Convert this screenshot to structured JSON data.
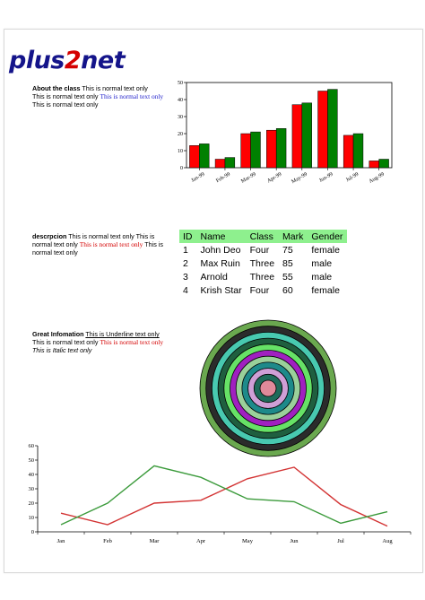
{
  "logo": {
    "part1": "plus",
    "part2": "2",
    "part3": "net"
  },
  "about": {
    "heading": "About the class",
    "t1": "This is normal text only",
    "t2": "This is normal text only",
    "t3": "This is normal text only",
    "t4": "This is normal text only"
  },
  "descr": {
    "heading": "descrpcion",
    "t1": "This is normal text only This is normal text only",
    "t2": "This is normal text only",
    "t3": "This is normal text only"
  },
  "info": {
    "heading": "Great Infomation",
    "underline": "This is Underline text only",
    "t1": "This is normal text only",
    "t2": "This is normal text only",
    "italic": "This is Italic text only"
  },
  "table": {
    "headers": [
      "ID",
      "Name",
      "Class",
      "Mark",
      "Gender"
    ],
    "rows": [
      [
        "1",
        "John Deo",
        "Four",
        "75",
        "female"
      ],
      [
        "2",
        "Max Ruin",
        "Three",
        "85",
        "male"
      ],
      [
        "3",
        "Arnold",
        "Three",
        "55",
        "male"
      ],
      [
        "4",
        "Krish Star",
        "Four",
        "60",
        "female"
      ]
    ]
  },
  "colors": {
    "red": "#ff0000",
    "green": "#008000",
    "line_red": "#d33434",
    "line_green": "#3c9b3c",
    "header_bg": "#8ef08e",
    "rings": [
      "#6aa84f",
      "#2b2b2b",
      "#48c9b0",
      "#1f5f3f",
      "#66e266",
      "#a020c0",
      "#9ad09a",
      "#1e8a8a",
      "#cf9fd6",
      "#1f6b5a",
      "#e08a9a"
    ]
  },
  "chart_data": [
    {
      "type": "bar",
      "categories": [
        "Jan-99",
        "Feb-99",
        "Mar-99",
        "Apr-99",
        "May-99",
        "Jun-99",
        "Jul-99",
        "Aug-99"
      ],
      "series": [
        {
          "values": [
            13,
            5,
            20,
            22,
            37,
            45,
            19,
            4
          ]
        },
        {
          "values": [
            14,
            6,
            21,
            23,
            38,
            46,
            20,
            5
          ]
        }
      ],
      "ylim": [
        0,
        50
      ],
      "yticks": [
        "0",
        "10",
        "20",
        "30",
        "40",
        "50"
      ]
    },
    {
      "type": "pie",
      "rings": 11
    },
    {
      "type": "line",
      "categories": [
        "Jan",
        "Feb",
        "Mar",
        "Apr",
        "May",
        "Jun",
        "Jul",
        "Aug"
      ],
      "series": [
        {
          "values": [
            13,
            5,
            20,
            22,
            37,
            45,
            19,
            4
          ]
        },
        {
          "values": [
            5,
            20,
            46,
            38,
            23,
            21,
            6,
            14
          ]
        }
      ],
      "ylim": [
        0,
        60
      ],
      "yticks": [
        "0",
        "10",
        "20",
        "30",
        "40",
        "50",
        "60"
      ]
    }
  ]
}
